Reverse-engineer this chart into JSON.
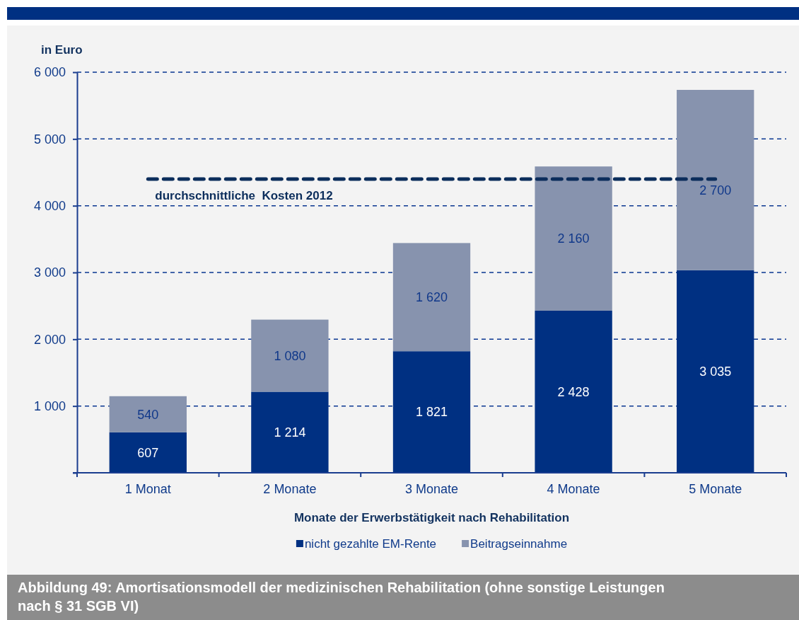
{
  "chart_data": {
    "type": "bar",
    "stacked": true,
    "title": "Abbildung 49: Amortisationsmodell der medizinischen Rehabilitation (ohne sonstige Leistungen nach § 31 SGB VI)",
    "ylabel": "in Euro",
    "xlabel": "Monate der Erwerbstätigkeit nach Rehabilitation",
    "categories": [
      "1 Monat",
      "2 Monate",
      "3 Monate",
      "4 Monate",
      "5 Monate"
    ],
    "series": [
      {
        "name": "nicht gezahlte EM-Rente",
        "color": "#003082",
        "values": [
          607,
          1214,
          1821,
          2428,
          3035
        ],
        "value_labels": [
          "607",
          "1 214",
          "1 821",
          "2 428",
          "3 035"
        ]
      },
      {
        "name": "Beitragseinnahme",
        "color": "#8793ae",
        "values": [
          540,
          1080,
          1620,
          2160,
          2700
        ],
        "value_labels": [
          "540",
          "1 080",
          "1 620",
          "2 160",
          "2 700"
        ]
      }
    ],
    "ylim": [
      0,
      6000
    ],
    "yticks": [
      {
        "value": 0,
        "label": null
      },
      {
        "value": 1000,
        "label": "1 000"
      },
      {
        "value": 2000,
        "label": "2 000"
      },
      {
        "value": 3000,
        "label": "3 000"
      },
      {
        "value": 4000,
        "label": "4 000"
      },
      {
        "value": 5000,
        "label": "5 000"
      },
      {
        "value": 6000,
        "label": "6 000"
      }
    ],
    "grid": "y",
    "legend": "bottom",
    "ref_lines": [
      {
        "axis": "y",
        "value": 4400,
        "label": "durchschnittliche  Kosten 2012",
        "color": "#0b2d5b",
        "line_style": "dashed"
      }
    ]
  }
}
